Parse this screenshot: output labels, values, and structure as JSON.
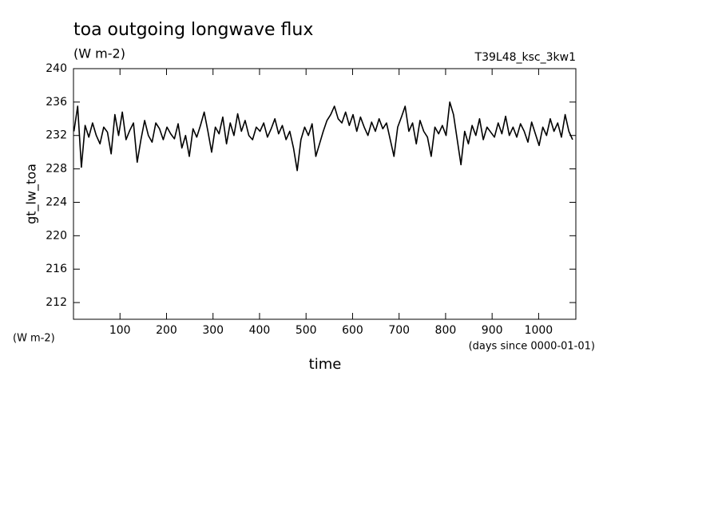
{
  "chart_data": {
    "type": "line",
    "title": "toa outgoing longwave flux",
    "subtitle": "(W m-2)",
    "annotation": "T39L48_ksc_3kw1",
    "y_label": "gt_lw_toa",
    "y_units": "(W m-2)",
    "x_label": "time",
    "x_units": "(days since 0000-01-01)",
    "color": "#000000",
    "xlim": [
      0,
      1080
    ],
    "xticks": [
      100,
      200,
      300,
      400,
      500,
      600,
      700,
      800,
      900,
      1000
    ],
    "ylim": [
      210,
      240
    ],
    "yticks": [
      212,
      216,
      220,
      224,
      228,
      232,
      236,
      240
    ],
    "x": [
      1,
      9,
      17,
      25,
      33,
      41,
      49,
      57,
      65,
      73,
      81,
      89,
      97,
      105,
      113,
      121,
      129,
      137,
      145,
      153,
      161,
      169,
      177,
      185,
      193,
      201,
      209,
      217,
      225,
      233,
      241,
      249,
      257,
      265,
      273,
      281,
      289,
      297,
      305,
      313,
      321,
      329,
      337,
      345,
      353,
      361,
      369,
      377,
      385,
      393,
      401,
      409,
      417,
      425,
      433,
      441,
      449,
      457,
      465,
      473,
      481,
      489,
      497,
      505,
      513,
      521,
      529,
      537,
      545,
      553,
      561,
      569,
      577,
      585,
      593,
      601,
      609,
      617,
      625,
      633,
      641,
      649,
      657,
      665,
      673,
      681,
      689,
      697,
      705,
      713,
      721,
      729,
      737,
      745,
      753,
      761,
      769,
      777,
      785,
      793,
      801,
      809,
      817,
      825,
      833,
      841,
      849,
      857,
      865,
      873,
      881,
      889,
      897,
      905,
      913,
      921,
      929,
      937,
      945,
      953,
      961,
      969,
      977,
      985,
      993,
      1001,
      1009,
      1017,
      1025,
      1033,
      1041,
      1049,
      1057,
      1065,
      1073
    ],
    "values": [
      232.5,
      235.5,
      228.2,
      233.2,
      231.8,
      233.5,
      232.0,
      231.0,
      233.0,
      232.4,
      229.8,
      234.5,
      232.0,
      234.8,
      231.5,
      232.6,
      233.5,
      228.8,
      231.5,
      233.8,
      232.0,
      231.2,
      233.5,
      232.8,
      231.5,
      233.0,
      232.2,
      231.6,
      233.4,
      230.5,
      232.0,
      229.5,
      232.8,
      231.8,
      233.2,
      234.8,
      232.5,
      230.0,
      233.0,
      232.2,
      234.2,
      231.0,
      233.5,
      232.0,
      234.6,
      232.5,
      233.8,
      232.0,
      231.5,
      233.0,
      232.5,
      233.5,
      231.8,
      232.8,
      234.0,
      232.2,
      233.2,
      231.5,
      232.5,
      230.5,
      227.8,
      231.5,
      233.0,
      232.0,
      233.4,
      229.5,
      231.0,
      232.5,
      233.8,
      234.5,
      235.5,
      234.0,
      233.5,
      234.8,
      233.2,
      234.5,
      232.5,
      234.2,
      233.0,
      232.0,
      233.6,
      232.5,
      234.0,
      232.8,
      233.5,
      231.5,
      229.5,
      233.0,
      234.2,
      235.5,
      232.5,
      233.5,
      231.0,
      233.8,
      232.5,
      231.8,
      229.5,
      233.0,
      232.2,
      233.2,
      232.0,
      236.0,
      234.5,
      231.5,
      228.5,
      232.5,
      231.0,
      233.2,
      232.0,
      234.0,
      231.5,
      233.0,
      232.4,
      231.8,
      233.5,
      232.2,
      234.3,
      232.0,
      233.0,
      231.8,
      233.4,
      232.5,
      231.2,
      233.6,
      232.2,
      230.8,
      233.0,
      232.0,
      234.0,
      232.5,
      233.5,
      231.8,
      234.5,
      232.5,
      231.5
    ]
  }
}
